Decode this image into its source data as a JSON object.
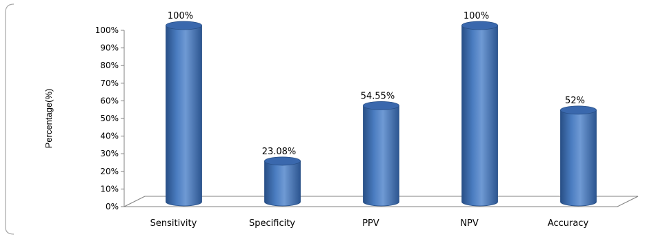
{
  "chart_data": {
    "type": "bar",
    "title": "",
    "xlabel": "",
    "ylabel": "Percentage(%)",
    "ylim": [
      0,
      100
    ],
    "yticks": [
      "0%",
      "10%",
      "20%",
      "30%",
      "40%",
      "50%",
      "60%",
      "70%",
      "80%",
      "90%",
      "100%"
    ],
    "categories": [
      "Sensitivity",
      "Specificity",
      "PPV",
      "NPV",
      "Accuracy"
    ],
    "values": [
      100,
      23.08,
      54.55,
      100,
      52
    ],
    "data_labels": [
      "100%",
      "23.08%",
      "54.55%",
      "100%",
      "52%"
    ],
    "grid": false,
    "legend": "none",
    "colors": {
      "bar": "#4a7cc0",
      "bar_dark": "#284f86",
      "bar_top": "#3a68ad",
      "axis": "#808080",
      "frame": "#a6a6a6"
    }
  }
}
